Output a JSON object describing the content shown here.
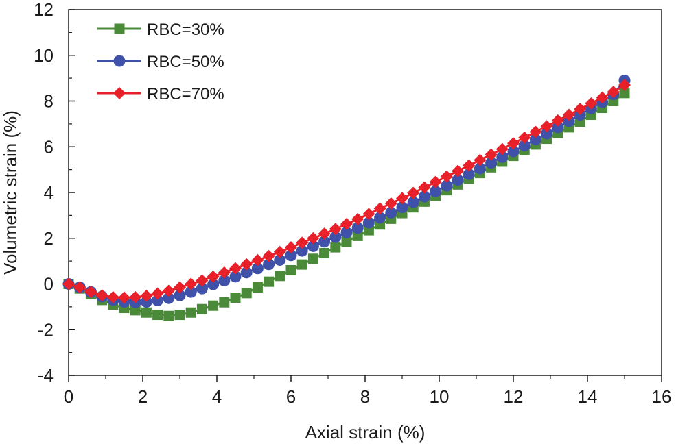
{
  "chart_data": {
    "type": "line",
    "title": "",
    "xlabel": "Axial strain (%)",
    "ylabel": "Volumetric strain (%)",
    "xlim": [
      0,
      16
    ],
    "ylim": [
      -4,
      12
    ],
    "x_ticks": [
      "0",
      "2",
      "4",
      "6",
      "8",
      "10",
      "12",
      "14",
      "16"
    ],
    "y_ticks": [
      "-4",
      "-2",
      "0",
      "2",
      "4",
      "6",
      "8",
      "10",
      "12"
    ],
    "legend_position": "top-left",
    "series": [
      {
        "name": "RBC=30%",
        "color": "#4a8a38",
        "marker": "square",
        "x": [
          0,
          0.3,
          0.6,
          0.9,
          1.2,
          1.5,
          1.8,
          2.1,
          2.4,
          2.7,
          3.0,
          3.3,
          3.6,
          3.9,
          4.2,
          4.5,
          4.8,
          5.1,
          5.4,
          5.7,
          6.0,
          6.3,
          6.6,
          6.9,
          7.2,
          7.5,
          7.8,
          8.1,
          8.4,
          8.7,
          9.0,
          9.3,
          9.6,
          9.9,
          10.2,
          10.5,
          10.8,
          11.1,
          11.4,
          11.7,
          12.0,
          12.3,
          12.6,
          12.9,
          13.2,
          13.5,
          13.8,
          14.1,
          14.4,
          14.7,
          15.0
        ],
        "y": [
          0,
          -0.2,
          -0.45,
          -0.7,
          -0.9,
          -1.05,
          -1.15,
          -1.25,
          -1.35,
          -1.4,
          -1.35,
          -1.25,
          -1.1,
          -0.95,
          -0.8,
          -0.6,
          -0.4,
          -0.15,
          0.1,
          0.35,
          0.6,
          0.85,
          1.1,
          1.35,
          1.6,
          1.85,
          2.1,
          2.35,
          2.6,
          2.85,
          3.1,
          3.35,
          3.6,
          3.85,
          4.1,
          4.35,
          4.6,
          4.85,
          5.1,
          5.35,
          5.6,
          5.85,
          6.1,
          6.35,
          6.6,
          6.85,
          7.1,
          7.4,
          7.7,
          8.0,
          8.35
        ]
      },
      {
        "name": "RBC=50%",
        "color": "#3f51a8",
        "marker": "circle",
        "x": [
          0,
          0.3,
          0.6,
          0.9,
          1.2,
          1.5,
          1.8,
          2.1,
          2.4,
          2.7,
          3.0,
          3.3,
          3.6,
          3.9,
          4.2,
          4.5,
          4.8,
          5.1,
          5.4,
          5.7,
          6.0,
          6.3,
          6.6,
          6.9,
          7.2,
          7.5,
          7.8,
          8.1,
          8.4,
          8.7,
          9.0,
          9.3,
          9.6,
          9.9,
          10.2,
          10.5,
          10.8,
          11.1,
          11.4,
          11.7,
          12.0,
          12.3,
          12.6,
          12.9,
          13.2,
          13.5,
          13.8,
          14.1,
          14.4,
          14.7,
          15.0
        ],
        "y": [
          0,
          -0.15,
          -0.35,
          -0.55,
          -0.7,
          -0.78,
          -0.8,
          -0.78,
          -0.72,
          -0.62,
          -0.5,
          -0.35,
          -0.2,
          -0.02,
          0.15,
          0.32,
          0.5,
          0.68,
          0.86,
          1.05,
          1.25,
          1.45,
          1.65,
          1.85,
          2.05,
          2.25,
          2.45,
          2.68,
          2.9,
          3.12,
          3.35,
          3.58,
          3.82,
          4.05,
          4.3,
          4.55,
          4.8,
          5.05,
          5.3,
          5.55,
          5.8,
          6.05,
          6.32,
          6.58,
          6.85,
          7.12,
          7.4,
          7.68,
          7.96,
          8.3,
          8.9
        ]
      },
      {
        "name": "RBC=70%",
        "color": "#e8202a",
        "marker": "diamond",
        "x": [
          0,
          0.3,
          0.6,
          0.9,
          1.2,
          1.5,
          1.8,
          2.1,
          2.4,
          2.7,
          3.0,
          3.3,
          3.6,
          3.9,
          4.2,
          4.5,
          4.8,
          5.1,
          5.4,
          5.7,
          6.0,
          6.3,
          6.6,
          6.9,
          7.2,
          7.5,
          7.8,
          8.1,
          8.4,
          8.7,
          9.0,
          9.3,
          9.6,
          9.9,
          10.2,
          10.5,
          10.8,
          11.1,
          11.4,
          11.7,
          12.0,
          12.3,
          12.6,
          12.9,
          13.2,
          13.5,
          13.8,
          14.1,
          14.4,
          14.7,
          15.0
        ],
        "y": [
          0,
          -0.15,
          -0.35,
          -0.5,
          -0.58,
          -0.6,
          -0.58,
          -0.52,
          -0.42,
          -0.3,
          -0.15,
          0.0,
          0.15,
          0.32,
          0.5,
          0.68,
          0.86,
          1.04,
          1.22,
          1.4,
          1.6,
          1.8,
          2.0,
          2.2,
          2.4,
          2.62,
          2.84,
          3.06,
          3.3,
          3.52,
          3.75,
          3.98,
          4.22,
          4.46,
          4.7,
          4.94,
          5.18,
          5.42,
          5.66,
          5.9,
          6.15,
          6.4,
          6.65,
          6.9,
          7.15,
          7.4,
          7.65,
          7.9,
          8.15,
          8.4,
          8.7
        ]
      }
    ]
  }
}
